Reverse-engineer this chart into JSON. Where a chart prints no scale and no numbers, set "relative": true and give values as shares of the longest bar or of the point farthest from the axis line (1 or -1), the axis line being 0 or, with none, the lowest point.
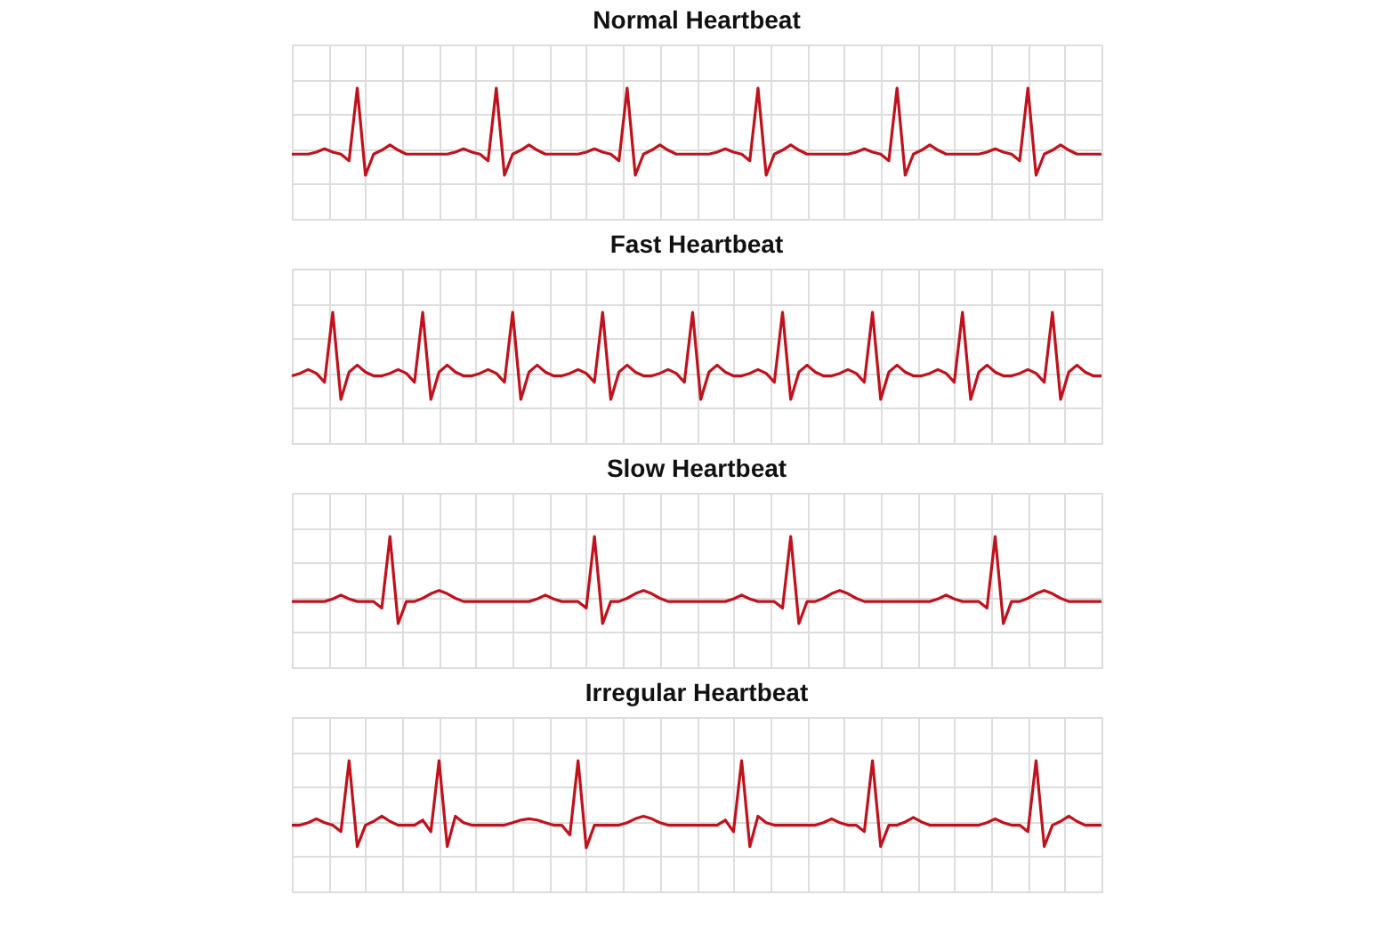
{
  "chart_data": [
    {
      "type": "line",
      "title": "Normal Heartbeat",
      "relative": true,
      "grid": true,
      "categories": [
        null,
        null,
        null,
        null,
        null,
        null,
        null,
        null,
        null,
        null,
        null,
        null,
        null,
        null,
        null,
        null,
        null,
        null,
        null,
        null,
        null,
        null,
        null,
        null,
        null,
        null,
        null,
        null,
        null,
        null,
        null,
        null,
        null,
        null,
        null,
        null,
        null,
        null,
        null,
        null,
        null,
        null,
        null,
        null,
        null,
        null,
        null,
        null,
        null,
        null,
        null,
        null,
        null,
        null,
        null,
        null,
        null,
        null,
        null,
        null,
        null,
        null,
        null,
        null,
        null,
        null,
        null,
        null,
        null,
        null,
        null,
        null,
        null,
        null,
        null,
        null,
        null,
        null,
        null,
        null,
        null,
        null,
        null,
        null,
        null,
        null,
        null,
        null,
        null,
        null,
        null,
        null,
        null,
        null,
        null,
        null,
        null,
        null,
        null,
        null
      ],
      "series": [
        {
          "color": "#c0121c",
          "values": [
            0,
            0,
            0,
            0.03,
            0.08,
            0.03,
            0,
            -0.1,
            1,
            -0.32,
            0,
            0.06,
            0.14,
            0.06,
            0,
            0,
            0,
            0,
            0,
            0,
            0.03,
            0.08,
            0.03,
            0,
            -0.1,
            1,
            -0.32,
            0,
            0.06,
            0.14,
            0.06,
            0,
            0,
            0,
            0,
            0,
            0.03,
            0.08,
            0.03,
            0,
            -0.1,
            1,
            -0.32,
            0,
            0.06,
            0.14,
            0.06,
            0,
            0,
            0,
            0,
            0,
            0.03,
            0.08,
            0.03,
            0,
            -0.1,
            1,
            -0.32,
            0,
            0.06,
            0.14,
            0.06,
            0,
            0,
            0,
            0,
            0,
            0,
            0.03,
            0.08,
            0.03,
            0,
            -0.1,
            1,
            -0.32,
            0,
            0.06,
            0.14,
            0.06,
            0,
            0,
            0,
            0,
            0,
            0.03,
            0.08,
            0.03,
            0,
            -0.1,
            1,
            -0.32,
            0,
            0.06,
            0.14,
            0.06,
            0,
            0,
            0,
            0
          ]
        }
      ]
    },
    {
      "type": "line",
      "title": "Fast Heartbeat",
      "relative": true,
      "grid": true,
      "categories": [
        null,
        null,
        null,
        null,
        null,
        null,
        null,
        null,
        null,
        null,
        null,
        null,
        null,
        null,
        null,
        null,
        null,
        null,
        null,
        null,
        null,
        null,
        null,
        null,
        null,
        null,
        null,
        null,
        null,
        null,
        null,
        null,
        null,
        null,
        null,
        null,
        null,
        null,
        null,
        null,
        null,
        null,
        null,
        null,
        null,
        null,
        null,
        null,
        null,
        null,
        null,
        null,
        null,
        null,
        null,
        null,
        null,
        null,
        null,
        null,
        null,
        null,
        null,
        null,
        null,
        null,
        null,
        null,
        null,
        null,
        null,
        null,
        null,
        null,
        null,
        null,
        null,
        null,
        null,
        null,
        null,
        null,
        null,
        null,
        null,
        null,
        null,
        null,
        null,
        null,
        null,
        null,
        null,
        null,
        null,
        null,
        null,
        null,
        null,
        null
      ],
      "series": [
        {
          "color": "#c0121c",
          "values": [
            0,
            0.04,
            0.1,
            0.04,
            -0.1,
            1,
            -0.37,
            0.06,
            0.17,
            0.06,
            0,
            0,
            0.04,
            0.1,
            0.04,
            -0.1,
            1,
            -0.37,
            0.06,
            0.17,
            0.06,
            0,
            0,
            0.04,
            0.1,
            0.04,
            -0.1,
            1,
            -0.37,
            0.06,
            0.17,
            0.06,
            0,
            0,
            0.04,
            0.1,
            0.04,
            -0.1,
            1,
            -0.37,
            0.06,
            0.17,
            0.06,
            0,
            0,
            0.04,
            0.1,
            0.04,
            -0.1,
            1,
            -0.37,
            0.06,
            0.17,
            0.06,
            0,
            0,
            0.04,
            0.1,
            0.04,
            -0.1,
            1,
            -0.37,
            0.06,
            0.17,
            0.06,
            0,
            0,
            0.04,
            0.1,
            0.04,
            -0.1,
            1,
            -0.37,
            0.06,
            0.17,
            0.06,
            0,
            0,
            0.04,
            0.1,
            0.04,
            -0.1,
            1,
            -0.37,
            0.06,
            0.17,
            0.06,
            0,
            0,
            0.04,
            0.1,
            0.04,
            -0.1,
            1,
            -0.37,
            0.06,
            0.17,
            0.06,
            0,
            0
          ]
        }
      ]
    },
    {
      "type": "line",
      "title": "Slow Heartbeat",
      "relative": true,
      "grid": true,
      "categories": [
        null,
        null,
        null,
        null,
        null,
        null,
        null,
        null,
        null,
        null,
        null,
        null,
        null,
        null,
        null,
        null,
        null,
        null,
        null,
        null,
        null,
        null,
        null,
        null,
        null,
        null,
        null,
        null,
        null,
        null,
        null,
        null,
        null,
        null,
        null,
        null,
        null,
        null,
        null,
        null,
        null,
        null,
        null,
        null,
        null,
        null,
        null,
        null,
        null,
        null,
        null,
        null,
        null,
        null,
        null,
        null,
        null,
        null,
        null,
        null,
        null,
        null,
        null,
        null,
        null,
        null,
        null,
        null,
        null,
        null,
        null,
        null,
        null,
        null,
        null,
        null,
        null,
        null,
        null,
        null,
        null,
        null,
        null,
        null,
        null,
        null,
        null,
        null,
        null,
        null,
        null,
        null,
        null,
        null,
        null,
        null,
        null,
        null,
        null,
        null
      ],
      "series": [
        {
          "color": "#c0121c",
          "values": [
            0,
            0,
            0,
            0,
            0,
            0.04,
            0.1,
            0.04,
            0,
            0,
            0,
            -0.1,
            1,
            -0.34,
            0,
            0,
            0.05,
            0.12,
            0.17,
            0.12,
            0.05,
            0,
            0,
            0,
            0,
            0,
            0,
            0,
            0,
            0,
            0.04,
            0.1,
            0.04,
            0,
            0,
            0,
            -0.1,
            1,
            -0.34,
            0,
            0,
            0.05,
            0.12,
            0.17,
            0.12,
            0.05,
            0,
            0,
            0,
            0,
            0,
            0,
            0,
            0,
            0.04,
            0.1,
            0.04,
            0,
            0,
            0,
            -0.1,
            1,
            -0.34,
            0,
            0,
            0.05,
            0.12,
            0.17,
            0.12,
            0.05,
            0,
            0,
            0,
            0,
            0,
            0,
            0,
            0,
            0,
            0.04,
            0.1,
            0.04,
            0,
            0,
            0,
            -0.1,
            1,
            -0.34,
            0,
            0,
            0.05,
            0.12,
            0.17,
            0.12,
            0.05,
            0,
            0,
            0,
            0,
            0
          ]
        }
      ]
    },
    {
      "type": "line",
      "title": "Irregular Heartbeat",
      "relative": true,
      "grid": true,
      "categories": [
        null,
        null,
        null,
        null,
        null,
        null,
        null,
        null,
        null,
        null,
        null,
        null,
        null,
        null,
        null,
        null,
        null,
        null,
        null,
        null,
        null,
        null,
        null,
        null,
        null,
        null,
        null,
        null,
        null,
        null,
        null,
        null,
        null,
        null,
        null,
        null,
        null,
        null,
        null,
        null,
        null,
        null,
        null,
        null,
        null,
        null,
        null,
        null,
        null,
        null,
        null,
        null,
        null,
        null,
        null,
        null,
        null,
        null,
        null,
        null,
        null,
        null,
        null,
        null,
        null,
        null,
        null,
        null,
        null,
        null,
        null,
        null,
        null,
        null,
        null,
        null,
        null,
        null,
        null,
        null,
        null,
        null,
        null,
        null,
        null,
        null,
        null,
        null,
        null,
        null,
        null,
        null,
        null,
        null,
        null,
        null,
        null,
        null,
        null,
        null
      ],
      "series": [
        {
          "color": "#c0121c",
          "values": [
            0,
            0,
            0.04,
            0.1,
            0.04,
            0,
            -0.1,
            1,
            -0.33,
            0,
            0.06,
            0.14,
            0.06,
            0,
            0,
            0,
            0.08,
            -0.1,
            1,
            -0.33,
            0.14,
            0.04,
            0,
            0,
            0,
            0,
            0,
            0.04,
            0.08,
            0.1,
            0.08,
            0.04,
            0,
            0,
            -0.15,
            1,
            -0.35,
            0,
            0,
            0,
            0,
            0.04,
            0.1,
            0.14,
            0.1,
            0.04,
            0,
            0,
            0,
            0,
            0,
            0,
            0,
            0.08,
            -0.1,
            1,
            -0.33,
            0.14,
            0.04,
            0,
            0,
            0,
            0,
            0,
            0,
            0.04,
            0.1,
            0.04,
            0,
            0,
            -0.1,
            1,
            -0.33,
            0,
            0,
            0.05,
            0.12,
            0.05,
            0,
            0,
            0,
            0,
            0,
            0,
            0,
            0.04,
            0.1,
            0.04,
            0,
            0,
            -0.1,
            1,
            -0.33,
            0,
            0.06,
            0.14,
            0.06,
            0,
            0,
            0
          ]
        }
      ]
    }
  ]
}
